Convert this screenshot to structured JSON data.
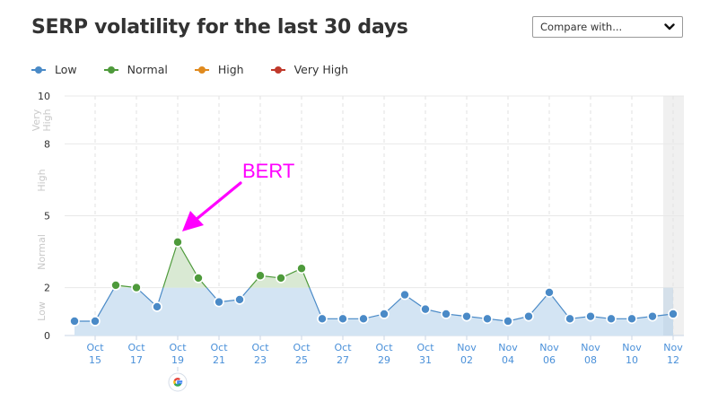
{
  "header": {
    "title": "SERP volatility for the last 30 days",
    "compare_select": {
      "label": "Compare with...",
      "icon": "chevron-down-icon"
    }
  },
  "legend": [
    {
      "label": "Low",
      "color": "#4a8ac7"
    },
    {
      "label": "Normal",
      "color": "#4e9a3b"
    },
    {
      "label": "High",
      "color": "#e08a1e"
    },
    {
      "label": "Very High",
      "color": "#c0392b"
    }
  ],
  "y_axis": {
    "ticks": [
      "0",
      "2",
      "5",
      "8",
      "10"
    ],
    "bands": [
      "Low",
      "Normal",
      "High",
      "Very High"
    ]
  },
  "x_axis": {
    "ticks": [
      {
        "month": "Oct",
        "day": "15"
      },
      {
        "month": "Oct",
        "day": "17"
      },
      {
        "month": "Oct",
        "day": "19"
      },
      {
        "month": "Oct",
        "day": "21"
      },
      {
        "month": "Oct",
        "day": "23"
      },
      {
        "month": "Oct",
        "day": "25"
      },
      {
        "month": "Oct",
        "day": "27"
      },
      {
        "month": "Oct",
        "day": "29"
      },
      {
        "month": "Oct",
        "day": "31"
      },
      {
        "month": "Nov",
        "day": "02"
      },
      {
        "month": "Nov",
        "day": "04"
      },
      {
        "month": "Nov",
        "day": "06"
      },
      {
        "month": "Nov",
        "day": "08"
      },
      {
        "month": "Nov",
        "day": "10"
      },
      {
        "month": "Nov",
        "day": "12"
      }
    ]
  },
  "annotation": {
    "text": "BERT",
    "color": "#ff00ff",
    "target": "Oct 19"
  },
  "google_update_marker": {
    "date": "Oct 19",
    "icon": "google-icon"
  },
  "chart_data": {
    "type": "area",
    "title": "SERP volatility for the last 30 days",
    "xlabel": "",
    "ylabel": "",
    "ylim": [
      0,
      10
    ],
    "y_ticks": [
      0,
      2,
      5,
      8,
      10
    ],
    "y_bands": [
      {
        "label": "Low",
        "range": [
          0,
          2
        ]
      },
      {
        "label": "Normal",
        "range": [
          2,
          5
        ]
      },
      {
        "label": "High",
        "range": [
          5,
          8
        ]
      },
      {
        "label": "Very High",
        "range": [
          8,
          10
        ]
      }
    ],
    "grid": true,
    "legend_position": "top",
    "x": [
      "Oct 14",
      "Oct 15",
      "Oct 16",
      "Oct 17",
      "Oct 18",
      "Oct 19",
      "Oct 20",
      "Oct 21",
      "Oct 22",
      "Oct 23",
      "Oct 24",
      "Oct 25",
      "Oct 26",
      "Oct 27",
      "Oct 28",
      "Oct 29",
      "Oct 30",
      "Oct 31",
      "Nov 01",
      "Nov 02",
      "Nov 03",
      "Nov 04",
      "Nov 05",
      "Nov 06",
      "Nov 07",
      "Nov 08",
      "Nov 09",
      "Nov 10",
      "Nov 11",
      "Nov 12"
    ],
    "series": [
      {
        "name": "SERP volatility",
        "values": [
          0.6,
          0.6,
          2.1,
          2.0,
          1.2,
          3.9,
          2.4,
          1.4,
          1.5,
          2.5,
          2.4,
          2.8,
          0.7,
          0.7,
          0.7,
          0.9,
          1.7,
          1.1,
          0.9,
          0.8,
          0.7,
          0.6,
          0.8,
          1.8,
          0.7,
          0.8,
          0.7,
          0.7,
          0.8,
          0.9
        ]
      }
    ],
    "annotations": [
      {
        "text": "BERT",
        "x": "Oct 19",
        "type": "arrow"
      },
      {
        "text": "Google update",
        "x": "Oct 19",
        "type": "icon"
      }
    ],
    "highlighted_range": [
      "Nov 12",
      "Nov 12"
    ]
  }
}
